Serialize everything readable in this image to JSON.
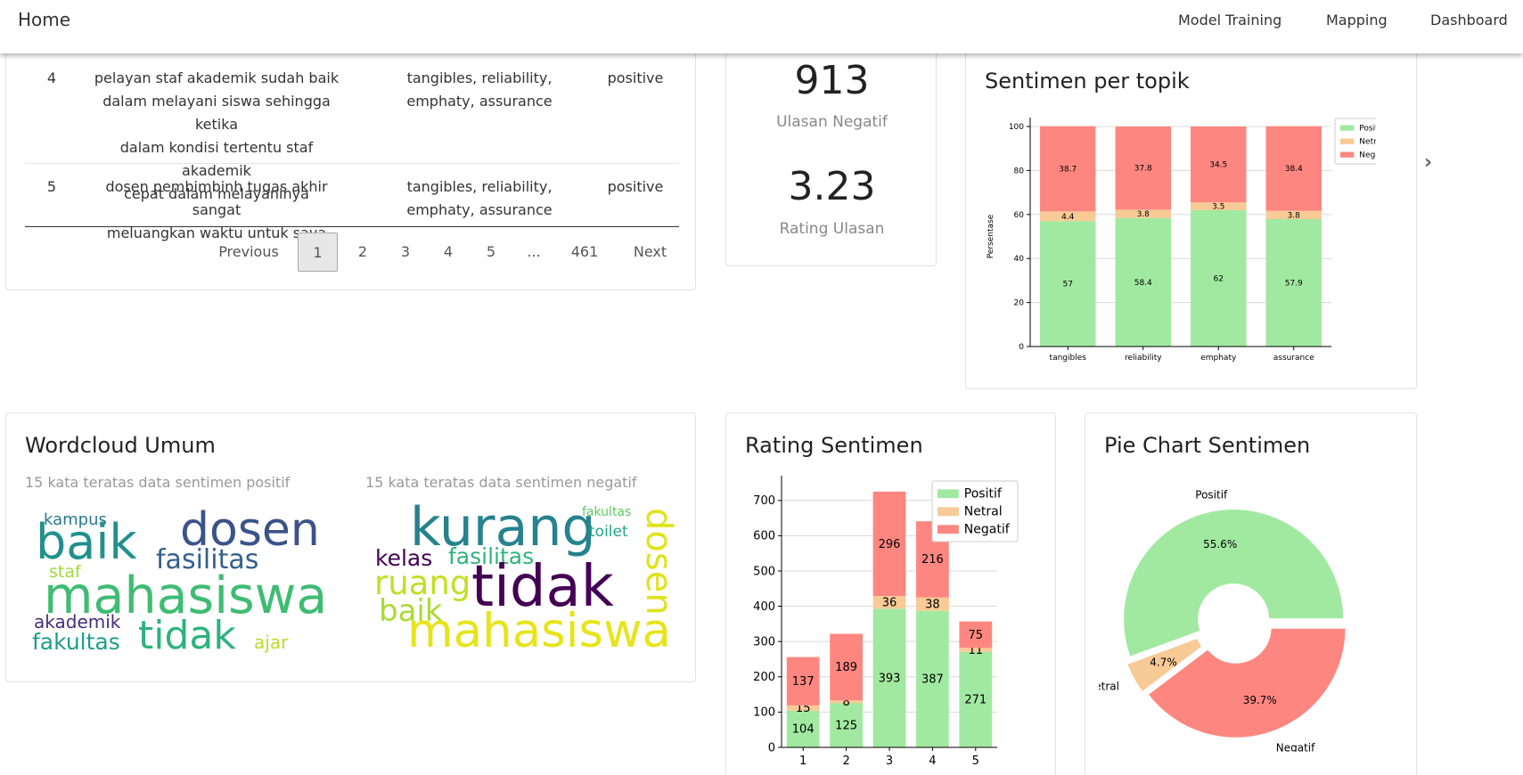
{
  "nav": {
    "brand": "Home",
    "links": [
      "Model Training",
      "Mapping",
      "Dashboard"
    ]
  },
  "table": {
    "rows": [
      {
        "no": "4",
        "text": "pelayan staf akademik sudah baik dalam melayani siswa sehingga ketika dalam kondisi tertentu staf akademik cepat dalam melayaninya",
        "text_lines": [
          "pelayan staf akademik sudah baik",
          "dalam melayani siswa sehingga ketika",
          "dalam kondisi tertentu staf akademik",
          "cepat dalam melayaninya"
        ],
        "topics_lines": [
          "tangibles, reliability,",
          "emphaty, assurance"
        ],
        "sentiment": "positive"
      },
      {
        "no": "5",
        "text": "dosen pembimbinh tugas akhir sangat meluangkan waktu untuk saya",
        "text_lines": [
          "dosen pembimbinh tugas akhir sangat",
          "meluangkan waktu untuk saya"
        ],
        "topics_lines": [
          "tangibles, reliability,",
          "emphaty, assurance"
        ],
        "sentiment": "positive"
      }
    ],
    "pagination": {
      "previous": "Previous",
      "pages": [
        "1",
        "2",
        "3",
        "4",
        "5",
        "...",
        "461"
      ],
      "active": "1",
      "next": "Next"
    }
  },
  "stats": {
    "negative_count": "913",
    "negative_label": "Ulasan Negatif",
    "rating": "3.23",
    "rating_label": "Rating Ulasan"
  },
  "topic_chart": {
    "title": "Sentimen per topik"
  },
  "wordcloud": {
    "title": "Wordcloud Umum",
    "positive_caption": "15 kata teratas data sentimen positif",
    "negative_caption": "15 kata teratas data sentimen negatif",
    "positive_words": [
      "kampus",
      "baik",
      "dosen",
      "fasilitas",
      "staf",
      "mahasiswa",
      "akademik",
      "fakultas",
      "tidak",
      "ajar"
    ],
    "negative_words": [
      "fakultas",
      "kurang",
      "toilet",
      "kelas",
      "fasilitas",
      "dosen",
      "ruang",
      "tidak",
      "baik",
      "mahasiswa"
    ]
  },
  "rating_chart": {
    "title": "Rating Sentimen"
  },
  "pie_chart": {
    "title": "Pie Chart Sentimen"
  },
  "colors": {
    "positif": "#a1e9a1",
    "netral": "#f7ca96",
    "negatif": "#fd8780"
  },
  "icons": {
    "carousel_next": "chevron-right-icon"
  },
  "chart_data": [
    {
      "type": "bar",
      "stacked": true,
      "title": "",
      "xlabel": "",
      "ylabel": "Persentase",
      "categories": [
        "tangibles",
        "reliability",
        "emphaty",
        "assurance"
      ],
      "series": [
        {
          "name": "Positif",
          "values": [
            57,
            58.4,
            62,
            57.9
          ]
        },
        {
          "name": "Netral",
          "values": [
            4.4,
            3.8,
            3.5,
            3.8
          ]
        },
        {
          "name": "Negatif",
          "values": [
            38.7,
            37.8,
            34.5,
            38.4
          ]
        }
      ],
      "ylim": [
        0,
        100
      ],
      "yticks": [
        0,
        20,
        40,
        60,
        80,
        100
      ],
      "grid": true,
      "legend": "top-right"
    },
    {
      "type": "bar",
      "stacked": true,
      "title": "",
      "xlabel": "",
      "ylabel": "",
      "categories": [
        "1",
        "2",
        "3",
        "4",
        "5"
      ],
      "series": [
        {
          "name": "Positif",
          "values": [
            104,
            125,
            393,
            387,
            271
          ]
        },
        {
          "name": "Netral",
          "values": [
            15,
            8,
            36,
            38,
            11
          ]
        },
        {
          "name": "Negatif",
          "values": [
            137,
            189,
            296,
            216,
            75
          ]
        }
      ],
      "ylim": [
        0,
        760
      ],
      "yticks": [
        0,
        100,
        200,
        300,
        400,
        500,
        600,
        700
      ],
      "grid": true,
      "legend": "top-right"
    },
    {
      "type": "pie",
      "donut": true,
      "title": "",
      "labels": [
        "Positif",
        "Netral",
        "Negatif"
      ],
      "values": [
        55.6,
        4.7,
        39.7
      ],
      "value_labels": [
        "55.6%",
        "4.7%",
        "39.7%"
      ]
    }
  ]
}
